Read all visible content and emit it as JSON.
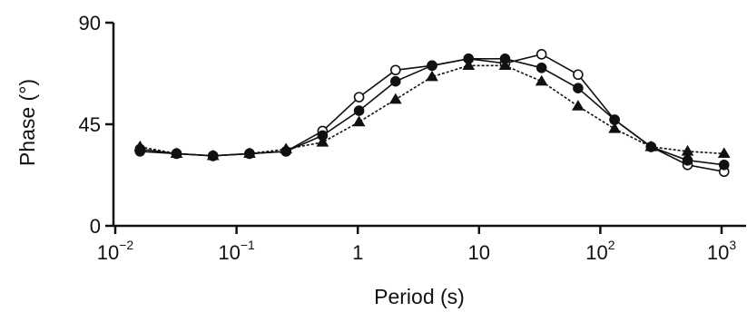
{
  "chart_data": {
    "type": "line",
    "title": "",
    "xlabel": "Period (s)",
    "ylabel": "Phase (°)",
    "x_scale": "log",
    "xlim": [
      0.01,
      1000
    ],
    "ylim": [
      0,
      90
    ],
    "grid": false,
    "legend": "none",
    "x_ticks": [
      {
        "value": 0.01,
        "base": "10",
        "exp": "−2"
      },
      {
        "value": 0.1,
        "base": "10",
        "exp": "−1"
      },
      {
        "value": 1,
        "base": "1",
        "exp": ""
      },
      {
        "value": 10,
        "base": "10",
        "exp": ""
      },
      {
        "value": 100,
        "base": "10",
        "exp": "2"
      },
      {
        "value": 1000,
        "base": "10",
        "exp": "3"
      }
    ],
    "y_ticks": [
      {
        "value": 0,
        "label": "0"
      },
      {
        "value": 45,
        "label": "45"
      },
      {
        "value": 90,
        "label": "90"
      }
    ],
    "x": [
      0.016,
      0.032,
      0.064,
      0.128,
      0.256,
      0.512,
      1.024,
      2.048,
      4.096,
      8.192,
      16.384,
      32.768,
      65.536,
      131.072,
      262.144,
      524.288,
      1048.576
    ],
    "series": [
      {
        "marker": "open-circle",
        "line": "solid",
        "values": [
          34,
          32,
          31,
          32,
          33,
          42,
          57,
          69,
          71,
          74,
          72,
          76,
          67,
          47,
          35,
          27,
          24
        ]
      },
      {
        "marker": "filled-circle",
        "line": "solid",
        "values": [
          33,
          32,
          31,
          32,
          33,
          40,
          51,
          64,
          71,
          74,
          74,
          70,
          61,
          47,
          35,
          29,
          27
        ]
      },
      {
        "marker": "filled-triangle",
        "line": "dotted",
        "values": [
          35,
          32,
          31,
          32,
          34,
          37,
          46,
          56,
          66,
          71,
          71,
          64,
          53,
          43,
          35,
          33,
          32
        ]
      }
    ],
    "colors": {
      "line": "#111111",
      "marker_fill": "#111111",
      "open_fill": "#ffffff"
    }
  }
}
